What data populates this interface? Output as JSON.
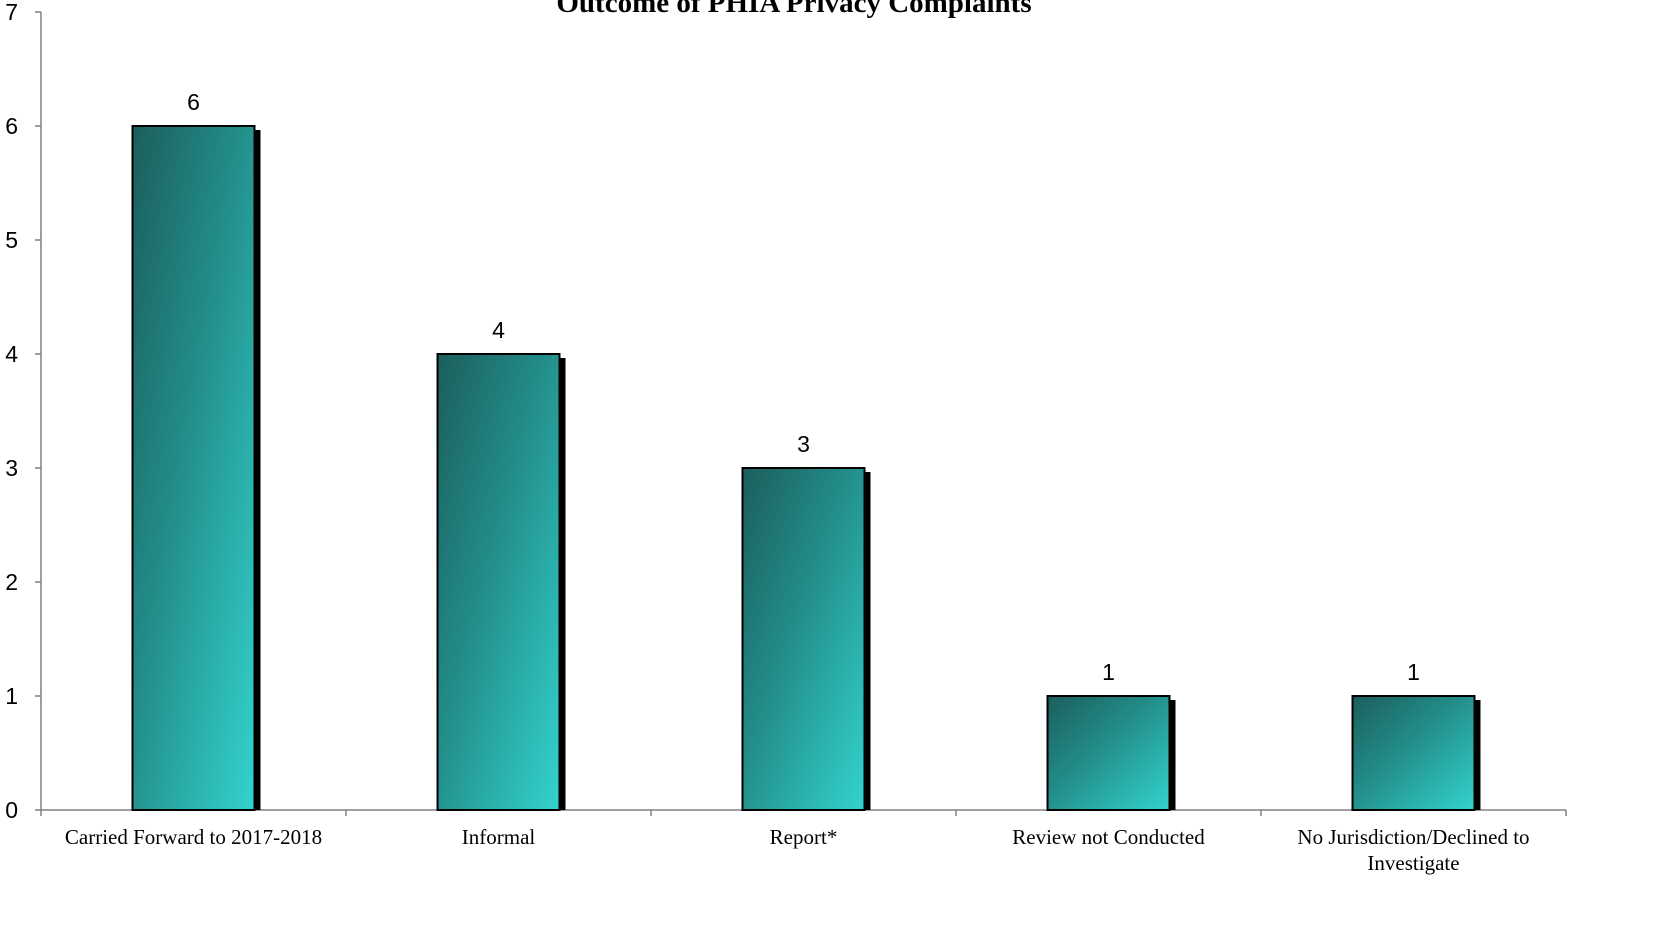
{
  "chart_data": {
    "type": "bar",
    "title": "Outcome of PHIA Privacy Complaints",
    "xlabel": "",
    "ylabel": "",
    "ylim": [
      0,
      7
    ],
    "yticks": [
      0,
      1,
      2,
      3,
      4,
      5,
      6,
      7
    ],
    "grid": false,
    "legend": "none",
    "categories": [
      [
        "Carried Forward to 2017-2018"
      ],
      [
        "Informal"
      ],
      [
        "Report*"
      ],
      [
        "Review not Conducted"
      ],
      [
        "No Jurisdiction/Declined to",
        "Investigate"
      ]
    ],
    "values": [
      6,
      4,
      3,
      1,
      1
    ],
    "colors": {
      "bar_dark": "#1b5e5c",
      "bar_mid": "#238e8a",
      "bar_light": "#33d3cf",
      "shadow": "#000000",
      "axis": "#808080"
    }
  }
}
